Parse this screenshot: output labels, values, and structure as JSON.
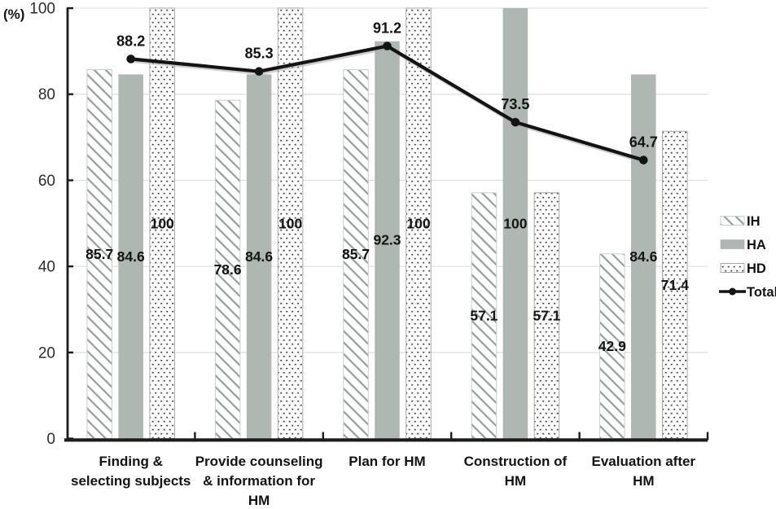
{
  "chart_data": {
    "type": "bar",
    "subtype": "grouped-bars-with-line-overlay",
    "title": "",
    "ylabel": "(%)",
    "xlabel": "",
    "ylim": [
      0,
      100
    ],
    "yticks": [
      0,
      20,
      40,
      60,
      80,
      100
    ],
    "grid": true,
    "categories": [
      "Finding &\nselecting subjects",
      "Provide counseling\n& information for\nHM",
      "Plan for HM",
      "Construction of\nHM",
      "Evaluation after\nHM"
    ],
    "bar_series": [
      {
        "name": "IH",
        "pattern": "diagonal-hatch",
        "values": [
          85.7,
          78.6,
          85.7,
          57.1,
          42.9
        ]
      },
      {
        "name": "HA",
        "pattern": "solid-gray",
        "values": [
          84.6,
          84.6,
          92.3,
          100,
          84.6
        ]
      },
      {
        "name": "HD",
        "pattern": "dotted",
        "values": [
          100,
          100,
          100,
          57.1,
          71.4
        ]
      }
    ],
    "line_series": [
      {
        "name": "Total",
        "marker": "circle",
        "values": [
          88.2,
          85.3,
          91.2,
          73.5,
          64.7
        ]
      }
    ],
    "legend": {
      "position": "right",
      "entries": [
        "IH",
        "HA",
        "HD",
        "Total"
      ]
    },
    "colors": {
      "solid_fill": "#afb7b3",
      "hatch_stroke": "#96a09b",
      "ih_border": "#c9cfcc",
      "hd_border": "#a5aca8",
      "dot_fill": "#3d3d3d",
      "line": "#141414",
      "line_shadow": "#a9a9a9",
      "gridline": "#e0e2e1",
      "axis": "#1c1c1c",
      "text": "#141414",
      "tick_text": "#2d2d2d",
      "background": "#ffffff"
    }
  }
}
